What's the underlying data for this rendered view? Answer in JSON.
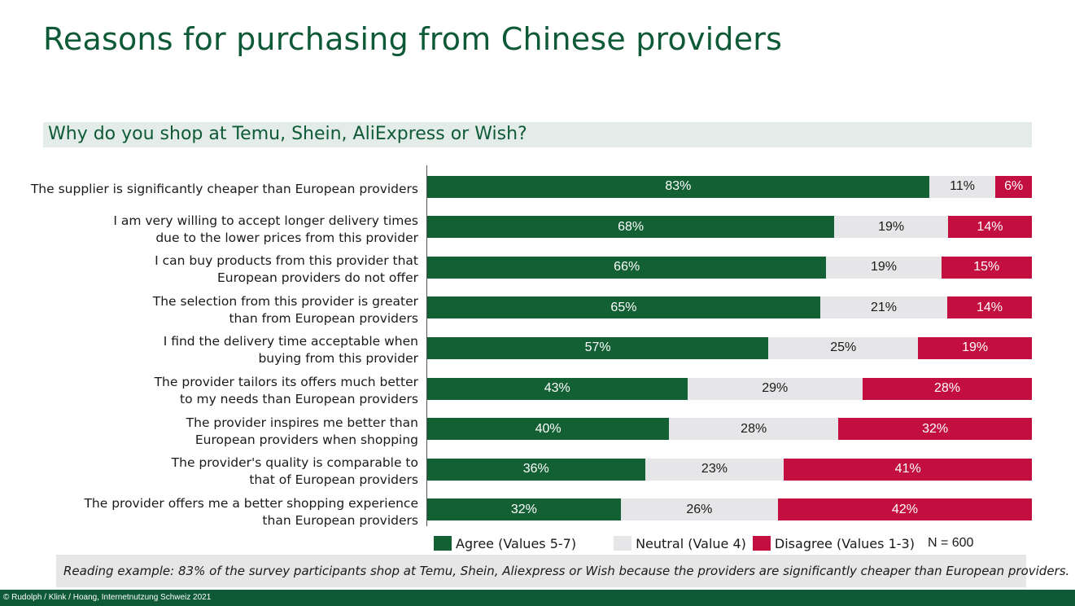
{
  "title": "Reasons for purchasing from Chinese providers",
  "subtitle": "Why do you shop at Temu, Shein,  AliExpress or Wish?",
  "chart_data": {
    "type": "bar",
    "orientation": "horizontal",
    "stacked": true,
    "normalized": "percent",
    "categories": [
      "The supplier is significantly cheaper than European providers",
      "I am very willing to accept longer delivery times due to the lower prices from this provider",
      "I can buy products from this provider that European providers do not offer",
      "The selection from this provider is greater than from European providers",
      "I find the delivery time acceptable when buying from this provider",
      "The provider tailors its offers much better to my needs than European providers",
      "The provider inspires me better than European providers when shopping",
      "The provider's quality is comparable to that of European providers",
      "The provider offers me a better shopping experience than European providers"
    ],
    "category_lines": [
      [
        "The supplier is significantly cheaper than European providers"
      ],
      [
        "I am very willing to accept longer delivery times",
        "due to the lower prices from this provider"
      ],
      [
        "I can buy products from this provider that",
        "European providers do not offer"
      ],
      [
        "The selection from this provider is greater",
        "than from European providers"
      ],
      [
        "I find the delivery time acceptable when",
        "buying from this provider"
      ],
      [
        "The provider tailors its offers much better",
        "to my needs than European providers"
      ],
      [
        "The provider inspires me better than",
        "European providers when shopping"
      ],
      [
        "The provider's quality is comparable to",
        "that of European providers"
      ],
      [
        "The provider offers me a better shopping experience",
        "than European providers"
      ]
    ],
    "series": [
      {
        "name": "Agree (Values 5-7)",
        "color": "#126033",
        "values": [
          83,
          68,
          66,
          65,
          57,
          43,
          40,
          36,
          32
        ]
      },
      {
        "name": "Neutral (Value 4)",
        "color": "#e6e6e8",
        "values": [
          11,
          19,
          19,
          21,
          25,
          29,
          28,
          23,
          26
        ]
      },
      {
        "name": "Disagree (Values 1-3)",
        "color": "#c20f3f",
        "values": [
          6,
          14,
          15,
          14,
          19,
          28,
          32,
          41,
          42
        ]
      }
    ],
    "value_suffix": "%",
    "xlim": [
      0,
      100
    ],
    "legend_position": "bottom",
    "sample_size": "N = 600"
  },
  "reading_example": "Reading example: 83% of the survey participants shop at Temu, Shein, Aliexpress or Wish because the providers are significantly cheaper than European providers.",
  "footer": "© Rudolph / Klink / Hoang, Internetnutzung Schweiz 2021"
}
